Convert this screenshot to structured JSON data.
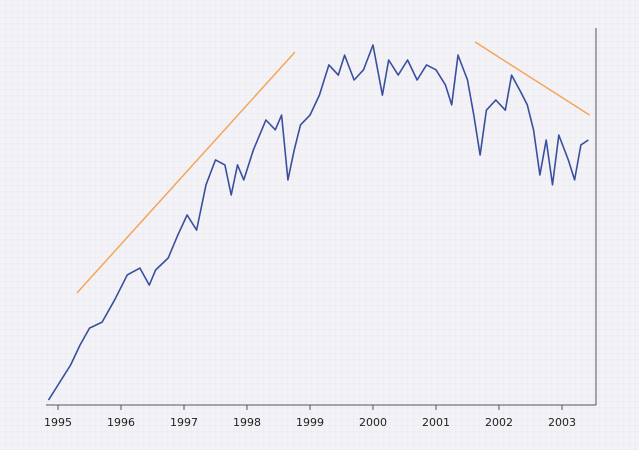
{
  "chart_data": {
    "type": "line",
    "x": [
      1994.85,
      1995.0,
      1995.2,
      1995.35,
      1995.5,
      1995.7,
      1995.9,
      1996.1,
      1996.3,
      1996.45,
      1996.55,
      1996.75,
      1996.9,
      1997.05,
      1997.2,
      1997.35,
      1997.5,
      1997.65,
      1997.75,
      1997.85,
      1997.95,
      1998.1,
      1998.3,
      1998.45,
      1998.55,
      1998.65,
      1998.75,
      1998.85,
      1999.0,
      1999.15,
      1999.3,
      1999.45,
      1999.55,
      1999.7,
      1999.85,
      2000.0,
      2000.15,
      2000.25,
      2000.4,
      2000.55,
      2000.7,
      2000.85,
      2001.0,
      2001.15,
      2001.25,
      2001.35,
      2001.5,
      2001.6,
      2001.7,
      2001.8,
      2001.95,
      2002.1,
      2002.2,
      2002.35,
      2002.45,
      2002.55,
      2002.65,
      2002.75,
      2002.85,
      2002.95,
      2003.1,
      2003.2,
      2003.3,
      2003.42
    ],
    "series": [
      {
        "color": "#3a4f9e",
        "values": [
          1.3,
          5.3,
          10.6,
          15.9,
          20.4,
          22,
          27.9,
          34.5,
          36.3,
          31.8,
          35.8,
          39,
          45,
          50.4,
          46.4,
          58.4,
          65,
          63.7,
          55.7,
          63.7,
          59.7,
          67.6,
          75.6,
          73,
          76.9,
          59.7,
          67.6,
          74.3,
          76.9,
          82.2,
          90.2,
          87.5,
          92.8,
          86.2,
          88.9,
          95.5,
          82.2,
          91.5,
          87.5,
          91.5,
          86.2,
          90.2,
          88.9,
          84.9,
          79.6,
          92.8,
          86.2,
          76.9,
          66.3,
          78.2,
          80.9,
          78.2,
          87.5,
          82.9,
          79.6,
          72.9,
          61,
          70.3,
          58.4,
          71.6,
          65,
          59.7,
          69,
          70.3
        ]
      }
    ],
    "trendlines": [
      {
        "color": "#f5a55a",
        "x": [
          1995.3,
          1998.76
        ],
        "values": [
          29.7,
          93.6
        ]
      },
      {
        "color": "#f5a55a",
        "x": [
          2001.62,
          2003.44
        ],
        "values": [
          96.3,
          76.9
        ]
      }
    ],
    "xlim": [
      1994.8,
      2003.55
    ],
    "xticks": [
      1995,
      1996,
      1997,
      1998,
      1999,
      2000,
      2001,
      2002,
      2003
    ],
    "ylim": [
      0,
      100
    ]
  }
}
